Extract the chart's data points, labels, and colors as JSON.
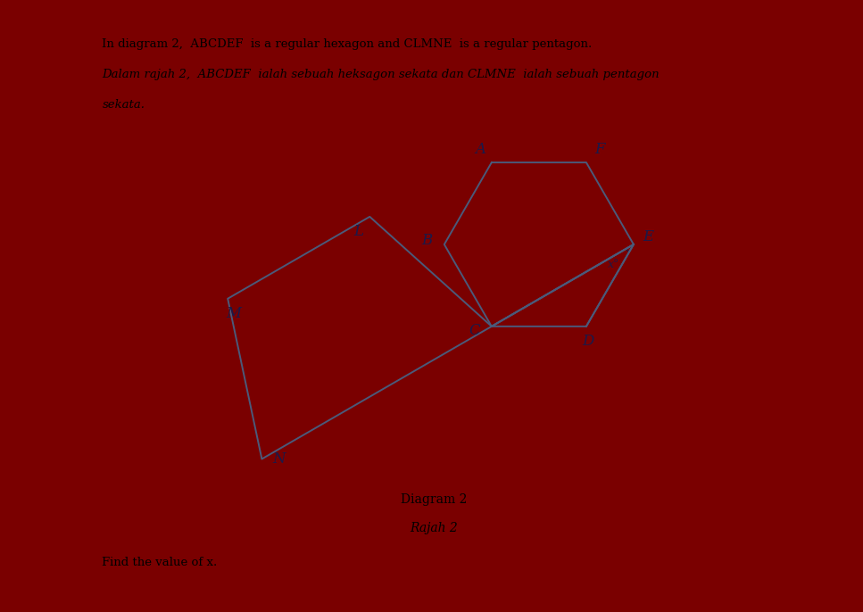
{
  "bg_color": "#ffffff",
  "shape_color": "#4a5a7a",
  "label_color": "#1a1a4a",
  "angle_label": "x°",
  "figure_bg": "#7a0000",
  "line1_en": "In diagram 2,  ABCDEF  is a regular hexagon and CLMNE  is a regular pentagon.",
  "line2_ms": "Dalam rajah 2,  ABCDEF  ialah sebuah heksagon sekata dan CLMNE  ialah sebuah pentagon",
  "line3_ms": "sekata.",
  "diagram_label1": "Diagram 2",
  "diagram_label2": "Rajah 2",
  "question": "Find the value of x."
}
